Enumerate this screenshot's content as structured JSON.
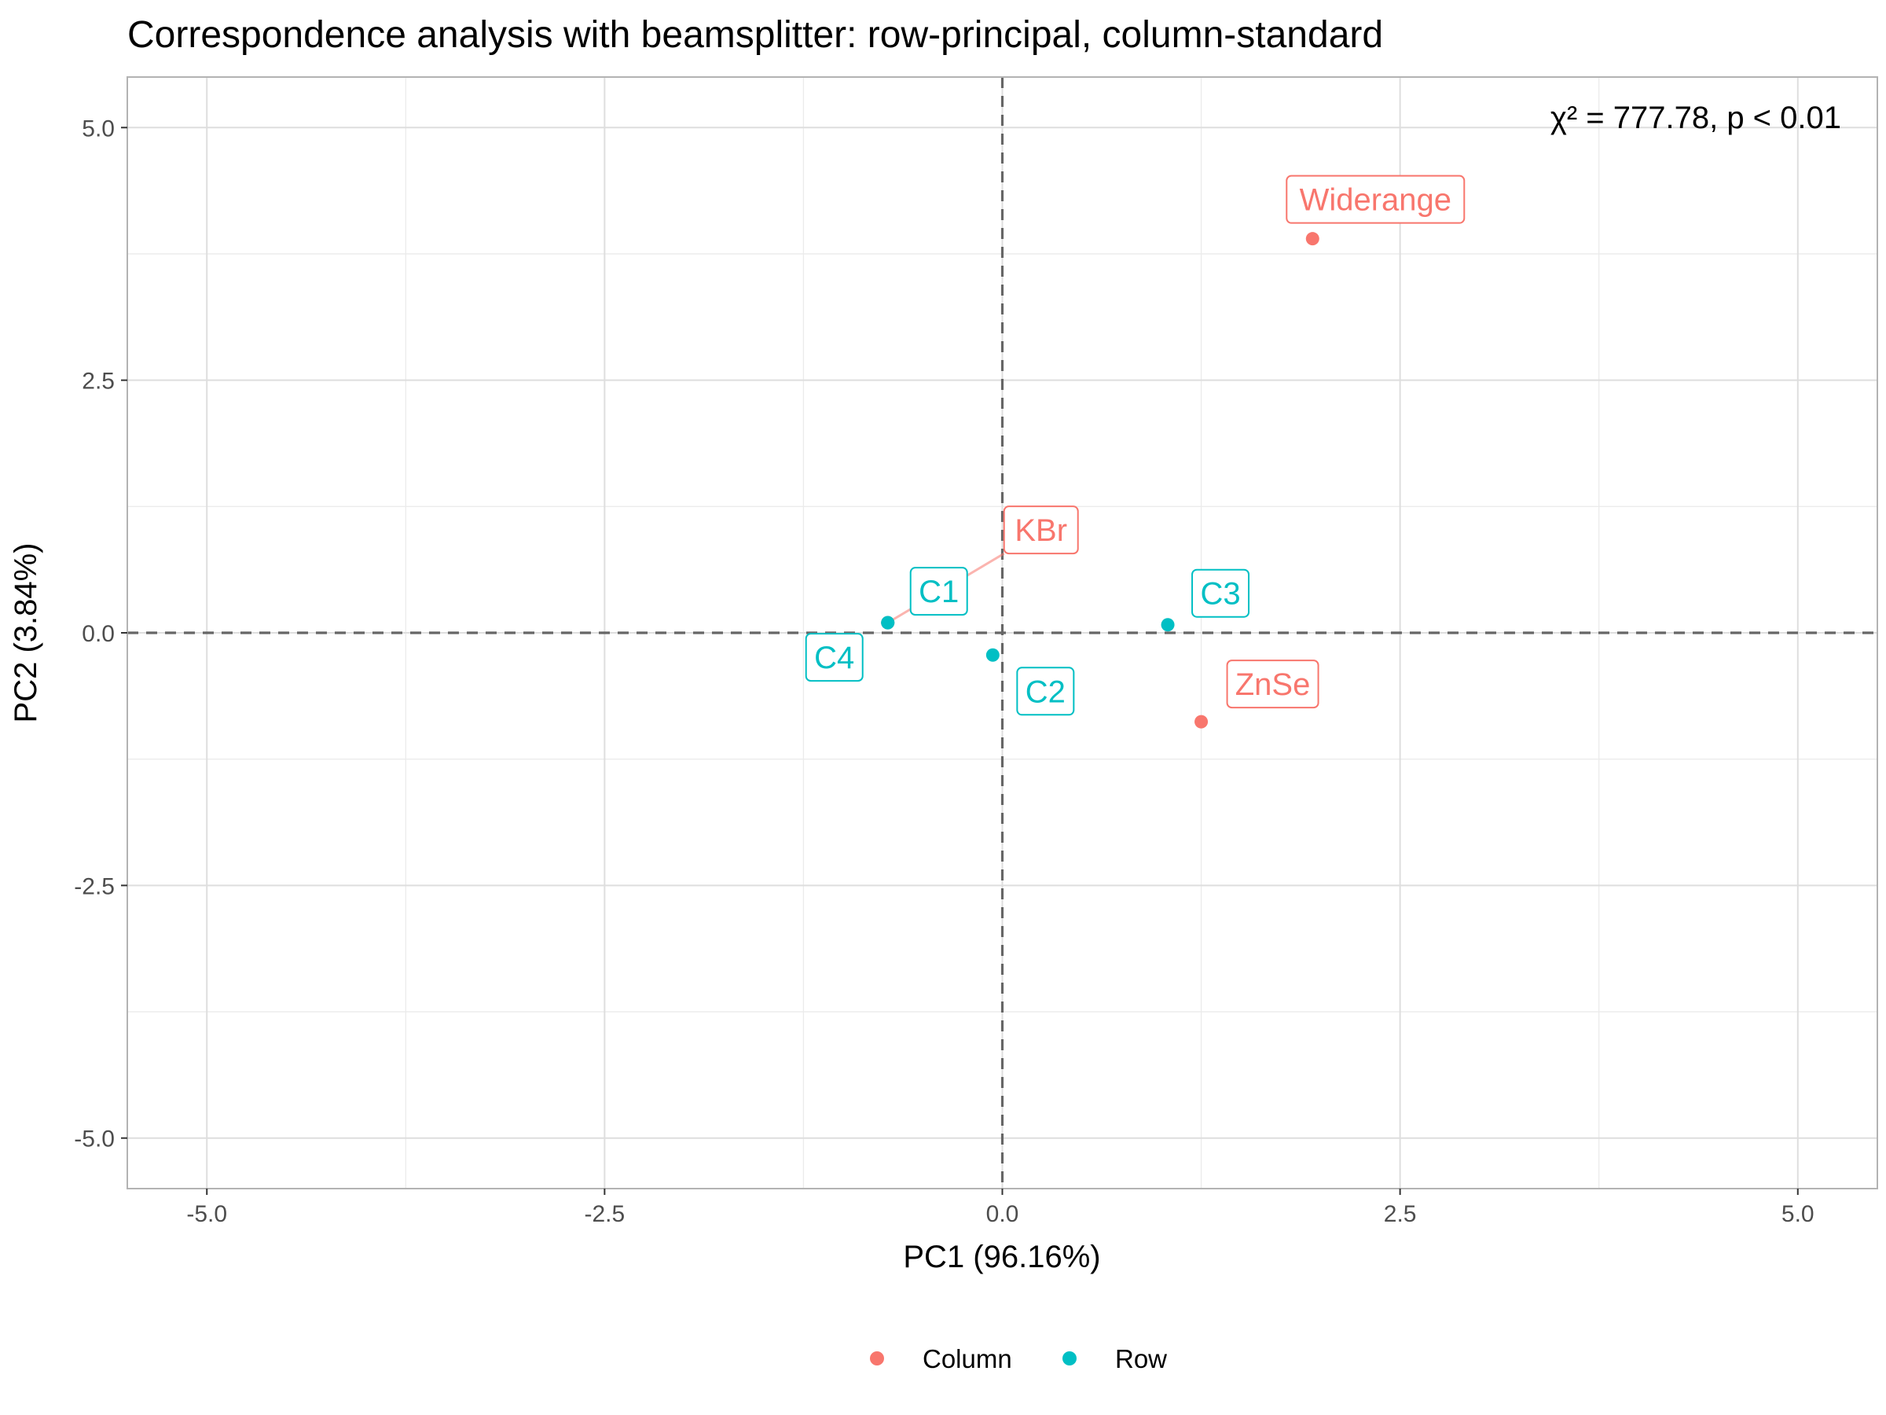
{
  "chart_data": {
    "type": "scatter",
    "title": "Correspondence analysis with beamsplitter: row-principal, column-standard",
    "xlabel": "PC1 (96.16%)",
    "ylabel": "PC2 (3.84%)",
    "xlim": [
      -5.5,
      5.5
    ],
    "ylim": [
      -5.5,
      5.5
    ],
    "x_ticks": [
      -5.0,
      -2.5,
      0.0,
      2.5,
      5.0
    ],
    "y_ticks": [
      -5.0,
      -2.5,
      0.0,
      2.5,
      5.0
    ],
    "x_tick_labels": [
      "-5.0",
      "-2.5",
      "0.0",
      "2.5",
      "5.0"
    ],
    "y_tick_labels": [
      "-5.0",
      "-2.5",
      "0.0",
      "2.5",
      "5.0"
    ],
    "grid": true,
    "reference_lines": {
      "x": 0,
      "y": 0,
      "style": "dashed"
    },
    "annotation": "χ² = 777.78, p < 0.01",
    "legend": {
      "position": "bottom",
      "entries": [
        "Column",
        "Row"
      ]
    },
    "series": [
      {
        "name": "Column",
        "color": "#F8766D",
        "points": [
          {
            "label": "Widerange",
            "x": 1.95,
            "y": 3.9
          },
          {
            "label": "KBr",
            "x": -0.72,
            "y": 0.1
          },
          {
            "label": "ZnSe",
            "x": 1.25,
            "y": -0.88
          }
        ]
      },
      {
        "name": "Row",
        "color": "#00BFC4",
        "points": [
          {
            "label": "C1",
            "x": -0.72,
            "y": 0.1
          },
          {
            "label": "C2",
            "x": -0.06,
            "y": -0.22
          },
          {
            "label": "C3",
            "x": 1.04,
            "y": 0.08
          },
          {
            "label": "C4",
            "x": -0.72,
            "y": 0.1
          }
        ]
      }
    ]
  }
}
